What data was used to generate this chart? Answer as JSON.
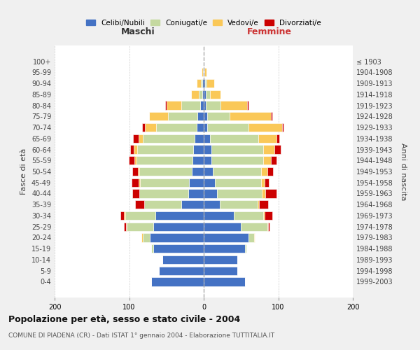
{
  "age_groups": [
    "0-4",
    "5-9",
    "10-14",
    "15-19",
    "20-24",
    "25-29",
    "30-34",
    "35-39",
    "40-44",
    "45-49",
    "50-54",
    "55-59",
    "60-64",
    "65-69",
    "70-74",
    "75-79",
    "80-84",
    "85-89",
    "90-94",
    "95-99",
    "100+"
  ],
  "birth_years": [
    "1999-2003",
    "1994-1998",
    "1989-1993",
    "1984-1988",
    "1979-1983",
    "1974-1978",
    "1969-1973",
    "1964-1968",
    "1959-1963",
    "1954-1958",
    "1949-1953",
    "1944-1948",
    "1939-1943",
    "1934-1938",
    "1929-1933",
    "1924-1928",
    "1919-1923",
    "1914-1918",
    "1909-1913",
    "1904-1908",
    "≤ 1903"
  ],
  "maschi": {
    "celibi": [
      70,
      60,
      55,
      68,
      72,
      68,
      65,
      30,
      21,
      20,
      16,
      15,
      14,
      12,
      9,
      8,
      5,
      2,
      2,
      1,
      0
    ],
    "coniugati": [
      0,
      0,
      0,
      2,
      10,
      35,
      40,
      50,
      65,
      65,
      70,
      75,
      75,
      70,
      55,
      40,
      25,
      5,
      2,
      0,
      0
    ],
    "vedovi": [
      0,
      0,
      0,
      0,
      2,
      1,
      2,
      0,
      0,
      2,
      2,
      3,
      5,
      5,
      15,
      25,
      20,
      10,
      5,
      2,
      0
    ],
    "divorziati": [
      0,
      0,
      0,
      0,
      0,
      3,
      5,
      12,
      10,
      10,
      8,
      7,
      5,
      8,
      4,
      0,
      2,
      0,
      0,
      0,
      0
    ]
  },
  "femmine": {
    "nubili": [
      55,
      45,
      45,
      55,
      60,
      50,
      40,
      22,
      18,
      15,
      12,
      10,
      10,
      8,
      5,
      5,
      3,
      3,
      2,
      1,
      0
    ],
    "coniugate": [
      0,
      0,
      0,
      2,
      8,
      35,
      40,
      50,
      60,
      62,
      65,
      70,
      70,
      65,
      55,
      30,
      20,
      5,
      2,
      0,
      0
    ],
    "vedove": [
      0,
      0,
      0,
      0,
      1,
      1,
      2,
      2,
      5,
      5,
      8,
      10,
      15,
      25,
      45,
      55,
      35,
      15,
      10,
      3,
      0
    ],
    "divorziate": [
      0,
      0,
      0,
      0,
      0,
      2,
      10,
      12,
      15,
      5,
      8,
      8,
      8,
      3,
      2,
      2,
      2,
      0,
      0,
      0,
      0
    ]
  },
  "colors": {
    "celibi": "#4472C4",
    "coniugati": "#C5D9A0",
    "vedovi": "#FAC858",
    "divorziati": "#CC0000"
  },
  "title": "Popolazione per età, sesso e stato civile - 2004",
  "subtitle": "COMUNE DI PIADENA (CR) - Dati ISTAT 1° gennaio 2004 - Elaborazione TUTTITALIA.IT",
  "xlabel_left": "Maschi",
  "xlabel_right": "Femmine",
  "ylabel_left": "Fasce di età",
  "ylabel_right": "Anni di nascita",
  "xlim": 200,
  "legend_labels": [
    "Celibi/Nubili",
    "Coniugati/e",
    "Vedovi/e",
    "Divorziati/e"
  ],
  "background_color": "#f0f0f0",
  "plot_bg": "#ffffff"
}
